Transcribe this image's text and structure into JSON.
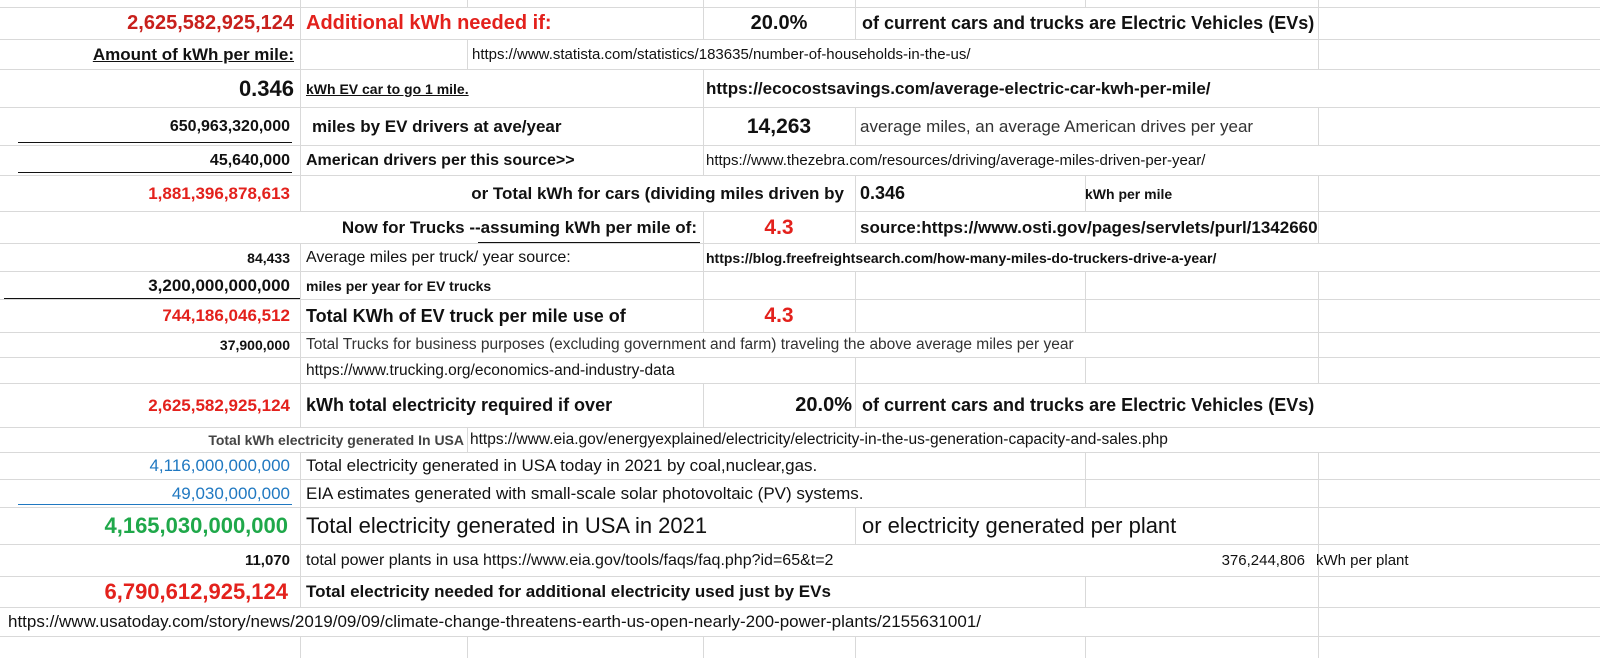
{
  "rows": {
    "r1": {
      "total": "2,625,582,925,124",
      "label": "Additional  kWh needed if:",
      "percent": "20.0%",
      "desc": "of current cars and trucks are Electric Vehicles (EVs)"
    },
    "r2": {
      "label": "Amount of kWh per mile:",
      "url": "https://www.statista.com/statistics/183635/number-of-households-in-the-us/"
    },
    "r3": {
      "value": "0.346",
      "label": "kWh EV car  to go 1 mile.",
      "url": "https://ecocostsavings.com/average-electric-car-kwh-per-mile/"
    },
    "r4": {
      "value": "650,963,320,000",
      "label": "miles  by EV drivers at ave/year",
      "avg_miles": "14,263",
      "desc": "average miles, an average American drives per year"
    },
    "r5": {
      "value": "45,640,000",
      "label": "American drivers per this source>>",
      "url": "https://www.thezebra.com/resources/driving/average-miles-driven-per-year/"
    },
    "r6": {
      "value": "1,881,396,878,613",
      "label": "or Total kWh for cars (dividing miles driven by",
      "kwh": "0.346",
      "unit": "kWh per mile"
    },
    "r7": {
      "label": "Now for Trucks --assuming kWh per mile of:",
      "kwh": "4.3",
      "source": "source:https://www.osti.gov/pages/servlets/purl/1342660"
    },
    "r8": {
      "value": "84,433",
      "label": "Average miles per truck/ year  source:",
      "url": "https://blog.freefreightsearch.com/how-many-miles-do-truckers-drive-a-year/"
    },
    "r9": {
      "value": "3,200,000,000,000",
      "label": "miles per year for EV trucks"
    },
    "r10": {
      "value": "744,186,046,512",
      "label": "Total KWh of EV truck per mile use of",
      "kwh": "4.3"
    },
    "r11": {
      "value": "37,900,000",
      "label": "Total Trucks for  business purposes (excluding government and farm) traveling the above average miles per year"
    },
    "r12": {
      "url": "https://www.trucking.org/economics-and-industry-data"
    },
    "r13": {
      "value": "2,625,582,925,124",
      "label": "kWh total electricity required if over",
      "percent": "20.0%",
      "desc": "of current cars and trucks are Electric Vehicles (EVs)"
    },
    "r14": {
      "label": "Total kWh electricity generated In USA",
      "url": "https://www.eia.gov/energyexplained/electricity/electricity-in-the-us-generation-capacity-and-sales.php"
    },
    "r15": {
      "value": "4,116,000,000,000",
      "label": "Total electricity generated in USA today in 2021 by coal,nuclear,gas."
    },
    "r16": {
      "value": "49,030,000,000",
      "label": "EIA estimates  generated with small-scale solar photovoltaic (PV) systems."
    },
    "r17": {
      "value": "4,165,030,000,000",
      "label": "Total electricity generated in USA in 2021",
      "desc": "or  electricity generated per plant"
    },
    "r18": {
      "value": "11,070",
      "label": "total power plants in usa   https://www.eia.gov/tools/faqs/faq.php?id=65&t=2",
      "per_plant": "376,244,806",
      "unit": "kWh  per plant"
    },
    "r19": {
      "value": "6,790,612,925,124",
      "label": "Total electricity needed for additional electricity used just by EVs"
    },
    "r20": {
      "url": "https://www.usatoday.com/story/news/2019/09/09/climate-change-threatens-earth-us-open-nearly-200-power-plants/2155631001/"
    }
  },
  "colors": {
    "red": "#e3211c",
    "blue": "#1f78c1",
    "green": "#1fa84a",
    "grid": "#d9d9d9"
  }
}
